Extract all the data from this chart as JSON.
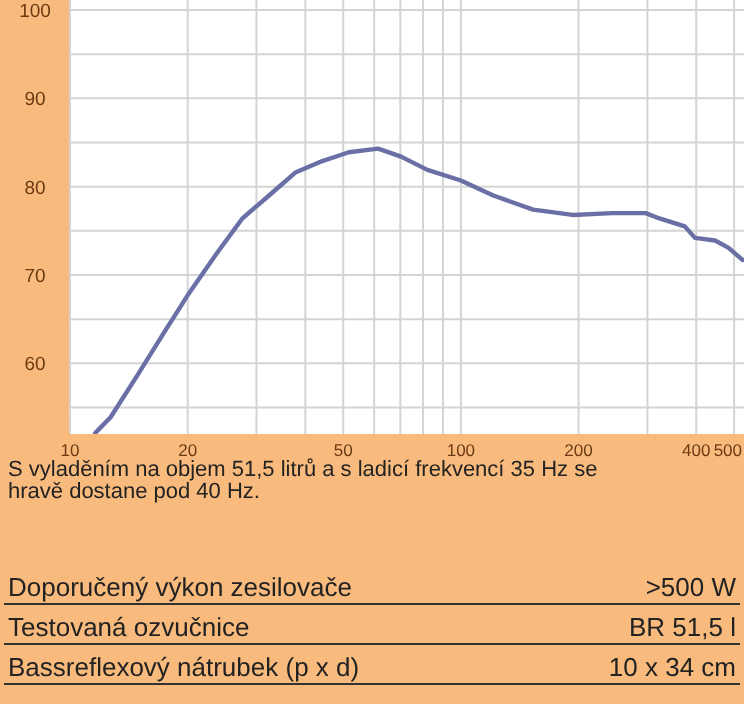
{
  "chart_data": {
    "type": "line",
    "log": "x",
    "grid": true,
    "marker": "none",
    "line_style": "solid",
    "xlim": [
      10,
      530
    ],
    "ylim": [
      52,
      100
    ],
    "xticks": [
      10,
      20,
      {
        "value": 30,
        "label": null
      },
      {
        "value": 40,
        "label": null
      },
      50,
      {
        "value": 60,
        "label": null
      },
      {
        "value": 70,
        "label": null
      },
      {
        "value": 80,
        "label": null
      },
      {
        "value": 90,
        "label": null
      },
      100,
      200,
      {
        "value": 300,
        "label": null
      },
      400,
      500
    ],
    "yticks": [
      {
        "value": 55,
        "label": null
      },
      60,
      {
        "value": 65,
        "label": null
      },
      70,
      {
        "value": 75,
        "label": null
      },
      80,
      {
        "value": 85,
        "label": null
      },
      90,
      {
        "value": 95,
        "label": null
      },
      100
    ],
    "series": [
      {
        "color": "#6a70a6",
        "x": [
          11.6,
          12.7,
          14.8,
          17.3,
          20.2,
          23.7,
          27.6,
          32.3,
          37.7,
          44.2,
          51.7,
          61.4,
          70.3,
          82.1,
          100,
          121,
          153,
          193,
          244,
          297,
          322,
          374,
          397,
          447,
          483,
          526
        ],
        "values": [
          52.1,
          53.9,
          58.5,
          63.3,
          68.0,
          72.4,
          76.4,
          79.0,
          81.6,
          82.9,
          83.9,
          84.3,
          83.4,
          81.9,
          80.7,
          79.0,
          77.4,
          76.8,
          77.0,
          77.0,
          76.4,
          75.5,
          74.2,
          73.9,
          73.1,
          71.7
        ]
      }
    ],
    "annotations": [
      "S vyladěním na objem 51,5 litrů a s ladicí frekvencí 35 Hz se hravě dostane pod 40 Hz.",
      "Doporučený výkon zesilovače",
      ">500 W",
      "Testovaná ozvučnice",
      "BR 51,5 l",
      "Bassreflexový nátrubek (p x d)",
      "10 x 34 cm"
    ]
  }
}
